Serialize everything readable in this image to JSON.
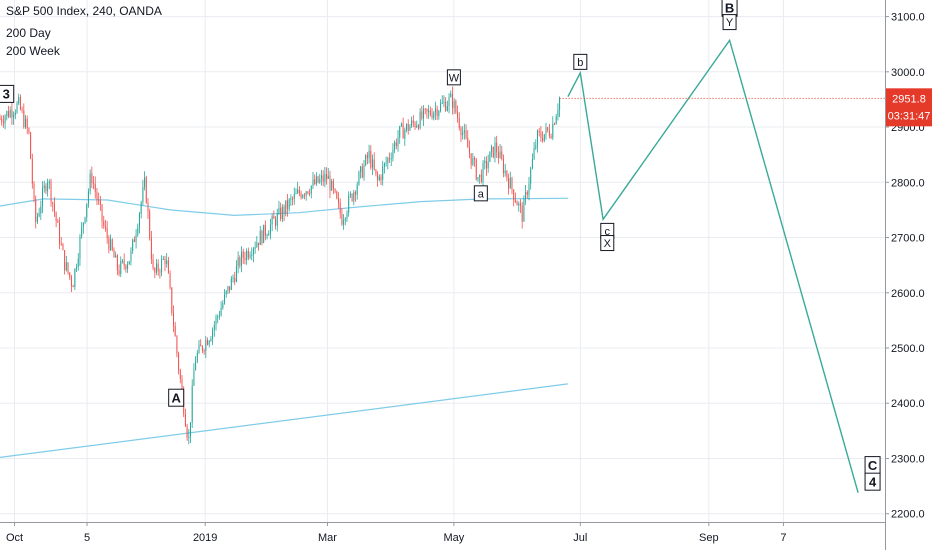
{
  "header": {
    "title": "S&P 500 Index, 240, OANDA",
    "indicator_1": "200 Day",
    "indicator_2": "200 Week"
  },
  "price_badge": {
    "price": "2951.8",
    "countdown": "03:31:47",
    "color": "#e5392a"
  },
  "colors": {
    "up": "#26a69a",
    "down": "#ef5350",
    "ma_line": "#7fcce8",
    "projection": "#3aa99a",
    "grid": "#e9ecf1",
    "axis_text": "#131722"
  },
  "chart_data": {
    "type": "candlestick",
    "y_axis": {
      "ticks": [
        2200,
        2300,
        2400,
        2500,
        2600,
        2700,
        2800,
        2900,
        3000,
        3100
      ],
      "tick_labels": [
        "2200.0",
        "2300.0",
        "2400.0",
        "2500.0",
        "2600.0",
        "2700.0",
        "2800.0",
        "2900.0",
        "3000.0",
        "3100.0"
      ],
      "range": [
        2185,
        3130
      ],
      "side": "right"
    },
    "x_axis": {
      "ticks": [
        "2018-10-01",
        "2018-11-05",
        "2019-01-01",
        "2019-03-01",
        "2019-05-01",
        "2019-07-01",
        "2019-09-01",
        "2019-10-07"
      ],
      "tick_labels": [
        "Oct",
        "5",
        "2019",
        "Mar",
        "May",
        "Jul",
        "Sep",
        "7"
      ],
      "range": [
        "2018-09-24",
        "2019-11-25"
      ]
    },
    "price_path": [
      [
        "2018-09-24",
        2915
      ],
      [
        "2018-10-03",
        2940
      ],
      [
        "2018-10-08",
        2885
      ],
      [
        "2018-10-11",
        2725
      ],
      [
        "2018-10-17",
        2810
      ],
      [
        "2018-10-25",
        2655
      ],
      [
        "2018-10-29",
        2615
      ],
      [
        "2018-11-07",
        2815
      ],
      [
        "2018-11-13",
        2720
      ],
      [
        "2018-11-20",
        2640
      ],
      [
        "2018-11-26",
        2665
      ],
      [
        "2018-12-03",
        2800
      ],
      [
        "2018-12-07",
        2630
      ],
      [
        "2018-12-13",
        2665
      ],
      [
        "2018-12-19",
        2470
      ],
      [
        "2018-12-24",
        2330
      ],
      [
        "2018-12-27",
        2480
      ],
      [
        "2019-01-04",
        2530
      ],
      [
        "2019-01-18",
        2660
      ],
      [
        "2019-02-01",
        2720
      ],
      [
        "2019-02-15",
        2780
      ],
      [
        "2019-03-01",
        2810
      ],
      [
        "2019-03-08",
        2735
      ],
      [
        "2019-03-21",
        2850
      ],
      [
        "2019-03-25",
        2800
      ],
      [
        "2019-04-05",
        2890
      ],
      [
        "2019-04-23",
        2935
      ],
      [
        "2019-04-30",
        2950
      ],
      [
        "2019-05-07",
        2870
      ],
      [
        "2019-05-13",
        2805
      ],
      [
        "2019-05-21",
        2865
      ],
      [
        "2019-06-03",
        2740
      ],
      [
        "2019-06-10",
        2880
      ],
      [
        "2019-06-17",
        2895
      ],
      [
        "2019-06-21",
        2952
      ]
    ],
    "series": [
      {
        "name": "200 Day",
        "values": [
          [
            "2018-09-24",
            2757
          ],
          [
            "2018-10-15",
            2770
          ],
          [
            "2018-11-15",
            2768
          ],
          [
            "2018-12-15",
            2750
          ],
          [
            "2019-01-15",
            2740
          ],
          [
            "2019-02-15",
            2745
          ],
          [
            "2019-03-15",
            2755
          ],
          [
            "2019-04-15",
            2765
          ],
          [
            "2019-05-15",
            2770
          ],
          [
            "2019-06-25",
            2771
          ]
        ]
      },
      {
        "name": "200 Week",
        "values": [
          [
            "2018-09-24",
            2302
          ],
          [
            "2019-06-25",
            2435
          ]
        ]
      }
    ],
    "projection": [
      [
        "2019-06-25",
        2955
      ],
      [
        "2019-07-01",
        2998
      ],
      [
        "2019-07-12",
        2733
      ],
      [
        "2019-09-11",
        3057
      ],
      [
        "2019-11-12",
        2238
      ]
    ],
    "wave_labels": [
      {
        "text": "3",
        "date": "2018-09-27",
        "price": 2960,
        "bold": true
      },
      {
        "text": "A",
        "date": "2018-12-18",
        "price": 2410,
        "bold": true
      },
      {
        "text": "W",
        "date": "2019-05-01",
        "price": 2990,
        "bold": false
      },
      {
        "text": "a",
        "date": "2019-05-14",
        "price": 2780,
        "bold": false
      },
      {
        "text": "b",
        "date": "2019-07-01",
        "price": 3018,
        "bold": false
      },
      {
        "text": "c",
        "date": "2019-07-14",
        "price": 2712,
        "bold": false
      },
      {
        "text": "X",
        "date": "2019-07-14",
        "price": 2690,
        "bold": false
      },
      {
        "text": "B",
        "date": "2019-09-11",
        "price": 3116,
        "bold": true
      },
      {
        "text": "Y",
        "date": "2019-09-11",
        "price": 3090,
        "bold": false
      },
      {
        "text": "C",
        "date": "2019-11-19",
        "price": 2288,
        "bold": true
      },
      {
        "text": "4",
        "date": "2019-11-19",
        "price": 2258,
        "bold": true
      }
    ]
  }
}
